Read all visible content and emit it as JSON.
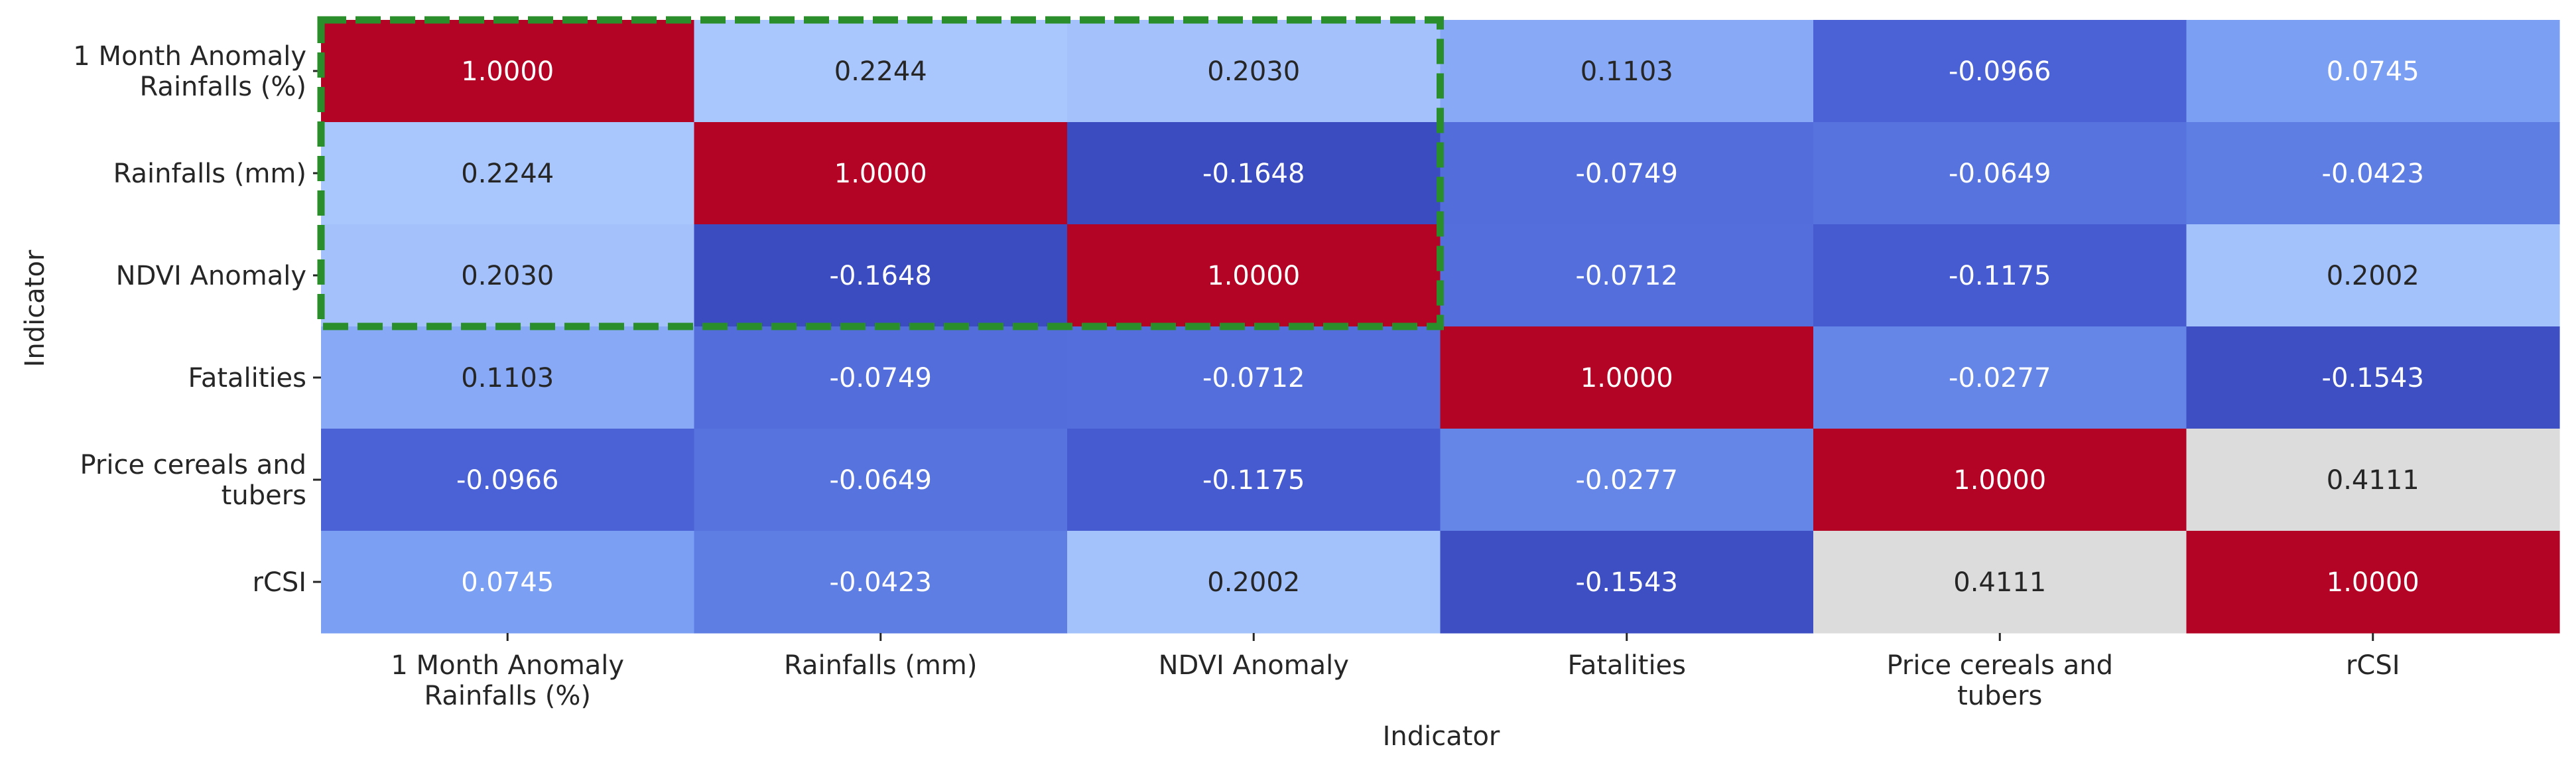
{
  "chart_data": {
    "type": "heatmap",
    "title": "",
    "xlabel": "Indicator",
    "ylabel": "Indicator",
    "row_labels": [
      [
        "1 Month Anomaly",
        "Rainfalls (%)"
      ],
      [
        "Rainfalls (mm)"
      ],
      [
        "NDVI Anomaly"
      ],
      [
        "Fatalities"
      ],
      [
        "Price cereals and",
        "tubers"
      ],
      [
        "rCSI"
      ]
    ],
    "col_labels": [
      [
        "1 Month Anomaly",
        "Rainfalls (%)"
      ],
      [
        "Rainfalls (mm)"
      ],
      [
        "NDVI Anomaly"
      ],
      [
        "Fatalities"
      ],
      [
        "Price cereals and",
        "tubers"
      ],
      [
        "rCSI"
      ]
    ],
    "values": [
      [
        1.0,
        0.2244,
        0.203,
        0.1103,
        -0.0966,
        0.0745
      ],
      [
        0.2244,
        1.0,
        -0.1648,
        -0.0749,
        -0.0649,
        -0.0423
      ],
      [
        0.203,
        -0.1648,
        1.0,
        -0.0712,
        -0.1175,
        0.2002
      ],
      [
        0.1103,
        -0.0749,
        -0.0712,
        1.0,
        -0.0277,
        -0.1543
      ],
      [
        -0.0966,
        -0.0649,
        -0.1175,
        -0.0277,
        1.0,
        0.4111
      ],
      [
        0.0745,
        -0.0423,
        0.2002,
        -0.1543,
        0.4111,
        1.0
      ]
    ],
    "value_format_decimals": 4,
    "colormap": "coolwarm",
    "color_scale": {
      "stops": [
        {
          "v": -0.1648,
          "color": "#3b4cc0"
        },
        {
          "v": -0.0966,
          "color": "#4a62d6"
        },
        {
          "v": -0.0277,
          "color": "#6586e7"
        },
        {
          "v": 0.0745,
          "color": "#7b9ff2"
        },
        {
          "v": 0.1103,
          "color": "#88a9f5"
        },
        {
          "v": 0.2244,
          "color": "#aac7fd"
        },
        {
          "v": 0.4111,
          "color": "#dcdcdd"
        },
        {
          "v": 1.0,
          "color": "#b40426"
        }
      ],
      "text_light": "#ffffff",
      "text_dark": "#262626",
      "dark_text_range": [
        0.09,
        0.6
      ]
    },
    "highlight_box": {
      "rows": [
        0,
        2
      ],
      "cols": [
        0,
        2
      ],
      "style": "dashed",
      "color": "#2a8f2a"
    },
    "colorbar": false,
    "grid": false
  }
}
